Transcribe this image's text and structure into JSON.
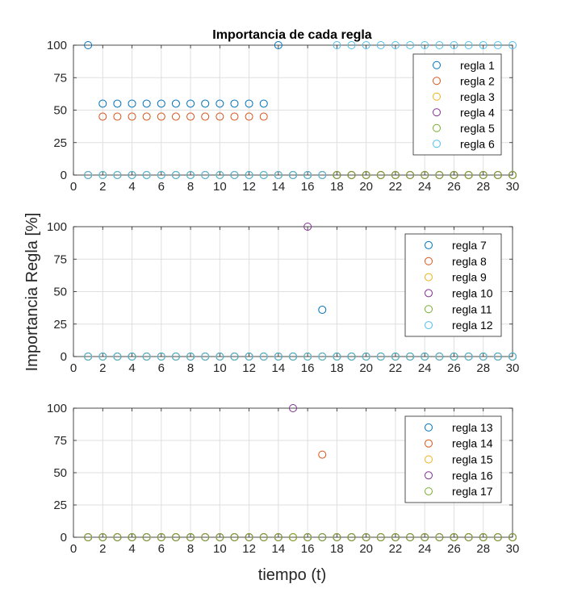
{
  "figure": {
    "title": "Importancia de cada regla",
    "ylabel": "Importancia Regla [%]",
    "xlabel": "tiempo (t)"
  },
  "chart_data": [
    {
      "type": "scatter",
      "xlim": [
        0,
        30
      ],
      "ylim": [
        0,
        100
      ],
      "xticks": [
        0,
        2,
        4,
        6,
        8,
        10,
        12,
        14,
        16,
        18,
        20,
        22,
        24,
        26,
        28,
        30
      ],
      "yticks": [
        0,
        25,
        50,
        75,
        100
      ],
      "grid": true,
      "legend_position": "top-right",
      "series": [
        {
          "name": "regla 1",
          "color": "#0072BD",
          "x": [
            1,
            2,
            3,
            4,
            5,
            6,
            7,
            8,
            9,
            10,
            11,
            12,
            13,
            14,
            15,
            16,
            17,
            18,
            19,
            20,
            21,
            22,
            23,
            24,
            25,
            26,
            27,
            28,
            29,
            30
          ],
          "y": [
            100,
            55,
            55,
            55,
            55,
            55,
            55,
            55,
            55,
            55,
            55,
            55,
            55,
            100,
            0,
            0,
            0,
            0,
            0,
            0,
            0,
            0,
            0,
            0,
            0,
            0,
            0,
            0,
            0,
            0
          ]
        },
        {
          "name": "regla 2",
          "color": "#D95319",
          "x": [
            1,
            2,
            3,
            4,
            5,
            6,
            7,
            8,
            9,
            10,
            11,
            12,
            13,
            14,
            15,
            16,
            17,
            18,
            19,
            20,
            21,
            22,
            23,
            24,
            25,
            26,
            27,
            28,
            29,
            30
          ],
          "y": [
            0,
            45,
            45,
            45,
            45,
            45,
            45,
            45,
            45,
            45,
            45,
            45,
            45,
            0,
            0,
            0,
            0,
            0,
            0,
            0,
            0,
            0,
            0,
            0,
            0,
            0,
            0,
            0,
            0,
            0
          ]
        },
        {
          "name": "regla 3",
          "color": "#EDB120",
          "x": [
            1,
            2,
            3,
            4,
            5,
            6,
            7,
            8,
            9,
            10,
            11,
            12,
            13,
            14,
            15,
            16,
            17,
            18,
            19,
            20,
            21,
            22,
            23,
            24,
            25,
            26,
            27,
            28,
            29,
            30
          ],
          "y": [
            0,
            0,
            0,
            0,
            0,
            0,
            0,
            0,
            0,
            0,
            0,
            0,
            0,
            0,
            0,
            0,
            0,
            0,
            0,
            0,
            0,
            0,
            0,
            0,
            0,
            0,
            0,
            0,
            0,
            0
          ]
        },
        {
          "name": "regla 4",
          "color": "#7E2F8E",
          "x": [
            1,
            2,
            3,
            4,
            5,
            6,
            7,
            8,
            9,
            10,
            11,
            12,
            13,
            14,
            15,
            16,
            17,
            18,
            19,
            20,
            21,
            22,
            23,
            24,
            25,
            26,
            27,
            28,
            29,
            30
          ],
          "y": [
            0,
            0,
            0,
            0,
            0,
            0,
            0,
            0,
            0,
            0,
            0,
            0,
            0,
            0,
            0,
            0,
            0,
            0,
            0,
            0,
            0,
            0,
            0,
            0,
            0,
            0,
            0,
            0,
            0,
            0
          ]
        },
        {
          "name": "regla 5",
          "color": "#77AC30",
          "x": [
            1,
            2,
            3,
            4,
            5,
            6,
            7,
            8,
            9,
            10,
            11,
            12,
            13,
            14,
            15,
            16,
            17,
            18,
            19,
            20,
            21,
            22,
            23,
            24,
            25,
            26,
            27,
            28,
            29,
            30
          ],
          "y": [
            0,
            0,
            0,
            0,
            0,
            0,
            0,
            0,
            0,
            0,
            0,
            0,
            0,
            0,
            0,
            0,
            0,
            0,
            0,
            0,
            0,
            0,
            0,
            0,
            0,
            0,
            0,
            0,
            0,
            0
          ]
        },
        {
          "name": "regla 6",
          "color": "#4DBEEE",
          "x": [
            1,
            2,
            3,
            4,
            5,
            6,
            7,
            8,
            9,
            10,
            11,
            12,
            13,
            14,
            15,
            16,
            17,
            18,
            19,
            20,
            21,
            22,
            23,
            24,
            25,
            26,
            27,
            28,
            29,
            30
          ],
          "y": [
            0,
            0,
            0,
            0,
            0,
            0,
            0,
            0,
            0,
            0,
            0,
            0,
            0,
            0,
            0,
            0,
            0,
            100,
            100,
            100,
            100,
            100,
            100,
            100,
            100,
            100,
            100,
            100,
            100,
            100
          ]
        }
      ]
    },
    {
      "type": "scatter",
      "xlim": [
        0,
        30
      ],
      "ylim": [
        0,
        100
      ],
      "xticks": [
        0,
        2,
        4,
        6,
        8,
        10,
        12,
        14,
        16,
        18,
        20,
        22,
        24,
        26,
        28,
        30
      ],
      "yticks": [
        0,
        25,
        50,
        75,
        100
      ],
      "grid": true,
      "legend_position": "top-right",
      "series": [
        {
          "name": "regla 7",
          "color": "#0072BD",
          "x": [
            1,
            2,
            3,
            4,
            5,
            6,
            7,
            8,
            9,
            10,
            11,
            12,
            13,
            14,
            15,
            16,
            17,
            18,
            19,
            20,
            21,
            22,
            23,
            24,
            25,
            26,
            27,
            28,
            29,
            30
          ],
          "y": [
            0,
            0,
            0,
            0,
            0,
            0,
            0,
            0,
            0,
            0,
            0,
            0,
            0,
            0,
            0,
            0,
            36,
            0,
            0,
            0,
            0,
            0,
            0,
            0,
            0,
            0,
            0,
            0,
            0,
            0
          ]
        },
        {
          "name": "regla 8",
          "color": "#D95319",
          "x": [
            1,
            2,
            3,
            4,
            5,
            6,
            7,
            8,
            9,
            10,
            11,
            12,
            13,
            14,
            15,
            16,
            17,
            18,
            19,
            20,
            21,
            22,
            23,
            24,
            25,
            26,
            27,
            28,
            29,
            30
          ],
          "y": [
            0,
            0,
            0,
            0,
            0,
            0,
            0,
            0,
            0,
            0,
            0,
            0,
            0,
            0,
            0,
            0,
            0,
            0,
            0,
            0,
            0,
            0,
            0,
            0,
            0,
            0,
            0,
            0,
            0,
            0
          ]
        },
        {
          "name": "regla 9",
          "color": "#EDB120",
          "x": [
            1,
            2,
            3,
            4,
            5,
            6,
            7,
            8,
            9,
            10,
            11,
            12,
            13,
            14,
            15,
            16,
            17,
            18,
            19,
            20,
            21,
            22,
            23,
            24,
            25,
            26,
            27,
            28,
            29,
            30
          ],
          "y": [
            0,
            0,
            0,
            0,
            0,
            0,
            0,
            0,
            0,
            0,
            0,
            0,
            0,
            0,
            0,
            0,
            0,
            0,
            0,
            0,
            0,
            0,
            0,
            0,
            0,
            0,
            0,
            0,
            0,
            0
          ]
        },
        {
          "name": "regla 10",
          "color": "#7E2F8E",
          "x": [
            1,
            2,
            3,
            4,
            5,
            6,
            7,
            8,
            9,
            10,
            11,
            12,
            13,
            14,
            15,
            16,
            17,
            18,
            19,
            20,
            21,
            22,
            23,
            24,
            25,
            26,
            27,
            28,
            29,
            30
          ],
          "y": [
            0,
            0,
            0,
            0,
            0,
            0,
            0,
            0,
            0,
            0,
            0,
            0,
            0,
            0,
            0,
            100,
            0,
            0,
            0,
            0,
            0,
            0,
            0,
            0,
            0,
            0,
            0,
            0,
            0,
            0
          ]
        },
        {
          "name": "regla 11",
          "color": "#77AC30",
          "x": [
            1,
            2,
            3,
            4,
            5,
            6,
            7,
            8,
            9,
            10,
            11,
            12,
            13,
            14,
            15,
            16,
            17,
            18,
            19,
            20,
            21,
            22,
            23,
            24,
            25,
            26,
            27,
            28,
            29,
            30
          ],
          "y": [
            0,
            0,
            0,
            0,
            0,
            0,
            0,
            0,
            0,
            0,
            0,
            0,
            0,
            0,
            0,
            0,
            0,
            0,
            0,
            0,
            0,
            0,
            0,
            0,
            0,
            0,
            0,
            0,
            0,
            0
          ]
        },
        {
          "name": "regla 12",
          "color": "#4DBEEE",
          "x": [
            1,
            2,
            3,
            4,
            5,
            6,
            7,
            8,
            9,
            10,
            11,
            12,
            13,
            14,
            15,
            16,
            17,
            18,
            19,
            20,
            21,
            22,
            23,
            24,
            25,
            26,
            27,
            28,
            29,
            30
          ],
          "y": [
            0,
            0,
            0,
            0,
            0,
            0,
            0,
            0,
            0,
            0,
            0,
            0,
            0,
            0,
            0,
            0,
            0,
            0,
            0,
            0,
            0,
            0,
            0,
            0,
            0,
            0,
            0,
            0,
            0,
            0
          ]
        }
      ]
    },
    {
      "type": "scatter",
      "xlim": [
        0,
        30
      ],
      "ylim": [
        0,
        100
      ],
      "xticks": [
        0,
        2,
        4,
        6,
        8,
        10,
        12,
        14,
        16,
        18,
        20,
        22,
        24,
        26,
        28,
        30
      ],
      "yticks": [
        0,
        25,
        50,
        75,
        100
      ],
      "grid": true,
      "legend_position": "top-right",
      "series": [
        {
          "name": "regla 13",
          "color": "#0072BD",
          "x": [
            1,
            2,
            3,
            4,
            5,
            6,
            7,
            8,
            9,
            10,
            11,
            12,
            13,
            14,
            15,
            16,
            17,
            18,
            19,
            20,
            21,
            22,
            23,
            24,
            25,
            26,
            27,
            28,
            29,
            30
          ],
          "y": [
            0,
            0,
            0,
            0,
            0,
            0,
            0,
            0,
            0,
            0,
            0,
            0,
            0,
            0,
            0,
            0,
            0,
            0,
            0,
            0,
            0,
            0,
            0,
            0,
            0,
            0,
            0,
            0,
            0,
            0
          ]
        },
        {
          "name": "regla 14",
          "color": "#D95319",
          "x": [
            1,
            2,
            3,
            4,
            5,
            6,
            7,
            8,
            9,
            10,
            11,
            12,
            13,
            14,
            15,
            16,
            17,
            18,
            19,
            20,
            21,
            22,
            23,
            24,
            25,
            26,
            27,
            28,
            29,
            30
          ],
          "y": [
            0,
            0,
            0,
            0,
            0,
            0,
            0,
            0,
            0,
            0,
            0,
            0,
            0,
            0,
            0,
            0,
            64,
            0,
            0,
            0,
            0,
            0,
            0,
            0,
            0,
            0,
            0,
            0,
            0,
            0
          ]
        },
        {
          "name": "regla 15",
          "color": "#EDB120",
          "x": [
            1,
            2,
            3,
            4,
            5,
            6,
            7,
            8,
            9,
            10,
            11,
            12,
            13,
            14,
            15,
            16,
            17,
            18,
            19,
            20,
            21,
            22,
            23,
            24,
            25,
            26,
            27,
            28,
            29,
            30
          ],
          "y": [
            0,
            0,
            0,
            0,
            0,
            0,
            0,
            0,
            0,
            0,
            0,
            0,
            0,
            0,
            0,
            0,
            0,
            0,
            0,
            0,
            0,
            0,
            0,
            0,
            0,
            0,
            0,
            0,
            0,
            0
          ]
        },
        {
          "name": "regla 16",
          "color": "#7E2F8E",
          "x": [
            1,
            2,
            3,
            4,
            5,
            6,
            7,
            8,
            9,
            10,
            11,
            12,
            13,
            14,
            15,
            16,
            17,
            18,
            19,
            20,
            21,
            22,
            23,
            24,
            25,
            26,
            27,
            28,
            29,
            30
          ],
          "y": [
            0,
            0,
            0,
            0,
            0,
            0,
            0,
            0,
            0,
            0,
            0,
            0,
            0,
            0,
            100,
            0,
            0,
            0,
            0,
            0,
            0,
            0,
            0,
            0,
            0,
            0,
            0,
            0,
            0,
            0
          ]
        },
        {
          "name": "regla 17",
          "color": "#77AC30",
          "x": [
            1,
            2,
            3,
            4,
            5,
            6,
            7,
            8,
            9,
            10,
            11,
            12,
            13,
            14,
            15,
            16,
            17,
            18,
            19,
            20,
            21,
            22,
            23,
            24,
            25,
            26,
            27,
            28,
            29,
            30
          ],
          "y": [
            0,
            0,
            0,
            0,
            0,
            0,
            0,
            0,
            0,
            0,
            0,
            0,
            0,
            0,
            0,
            0,
            0,
            0,
            0,
            0,
            0,
            0,
            0,
            0,
            0,
            0,
            0,
            0,
            0,
            0
          ]
        }
      ]
    }
  ]
}
